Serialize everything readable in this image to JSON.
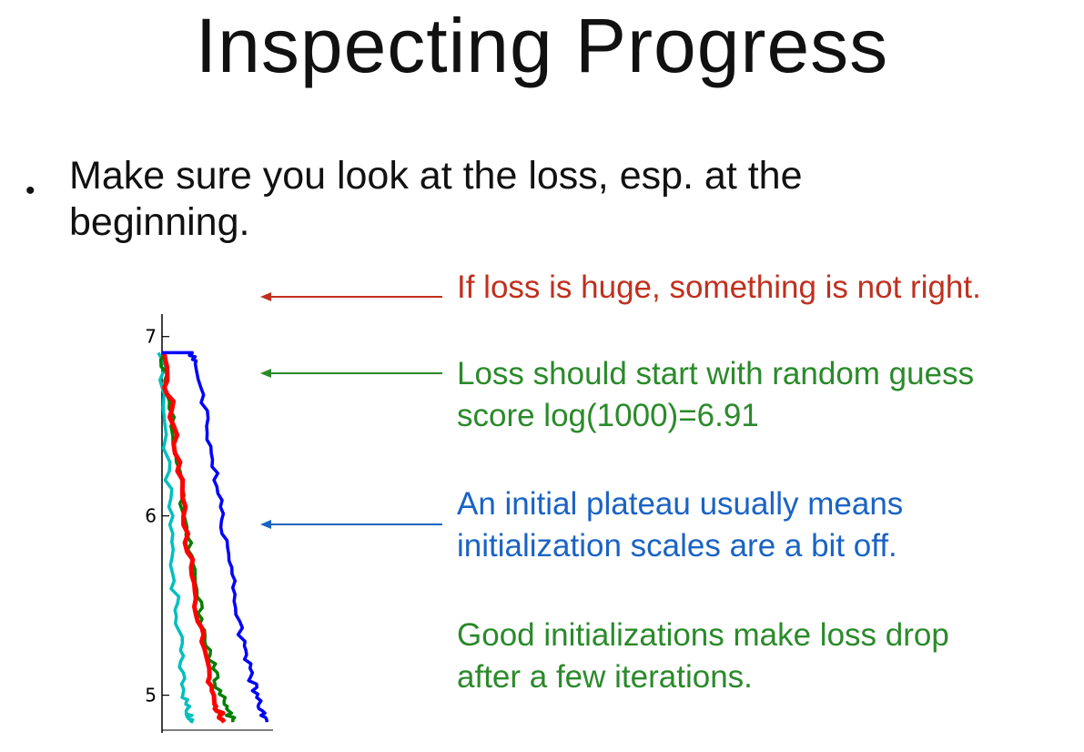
{
  "slide": {
    "title": "Inspecting Progress",
    "bullet": "Make sure you look at the loss, esp. at the beginning.",
    "bullet_marker": "•"
  },
  "annotations": [
    {
      "text": "If loss is huge, something is not right.",
      "color": "#c0301f"
    },
    {
      "text": "Loss should start with random guess\nscore log(1000)=6.91",
      "color": "#2a8a2a"
    },
    {
      "text": "An initial plateau usually means\ninitialization scales are a bit off.",
      "color": "#1a63c4"
    },
    {
      "text": "Good initializations make loss drop\nafter a few iterations.",
      "color": "#2a8a2a"
    }
  ],
  "chart_data": {
    "type": "line",
    "ylim": [
      4.8,
      7.1
    ],
    "yticks": [
      "5",
      "6",
      "7"
    ],
    "ytick_values": [
      5,
      6,
      7
    ],
    "xlim": [
      0,
      130
    ],
    "series": [
      {
        "color": "#00bfbf",
        "x": [
          0,
          5,
          10,
          15,
          20,
          25,
          30,
          35
        ],
        "y": [
          6.91,
          6.3,
          5.9,
          5.55,
          5.25,
          5.0,
          4.9,
          4.85
        ]
      },
      {
        "color": "#008000",
        "x": [
          0,
          10,
          20,
          30,
          40,
          50,
          60,
          70,
          80
        ],
        "y": [
          6.91,
          6.6,
          6.2,
          5.85,
          5.55,
          5.3,
          5.1,
          4.95,
          4.85
        ]
      },
      {
        "color": "#ff0000",
        "x": [
          0,
          10,
          20,
          30,
          40,
          50,
          60,
          70
        ],
        "y": [
          6.91,
          6.6,
          6.2,
          5.8,
          5.45,
          5.15,
          4.95,
          4.85
        ]
      },
      {
        "color": "#0000ff",
        "x": [
          0,
          15,
          30,
          40,
          50,
          60,
          70,
          80,
          90,
          100,
          110,
          118
        ],
        "y": [
          6.91,
          6.91,
          6.91,
          6.85,
          6.5,
          6.2,
          5.9,
          5.6,
          5.3,
          5.1,
          4.95,
          4.85
        ]
      }
    ]
  }
}
